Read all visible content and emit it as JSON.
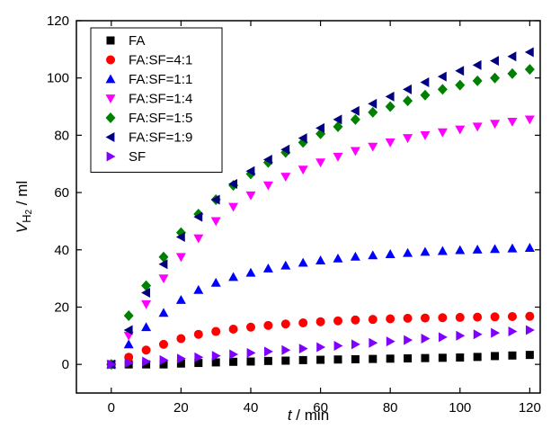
{
  "chart_data": {
    "type": "scatter",
    "xlabel": {
      "var": "t",
      "sep": " / ",
      "unit": "min"
    },
    "ylabel": {
      "var": "V",
      "sub": "H",
      "subsub": "2",
      "sep": " / ",
      "unit": "ml"
    },
    "xlim": [
      -10,
      123
    ],
    "ylim": [
      -10,
      120
    ],
    "xticks": [
      0,
      20,
      40,
      60,
      80,
      100,
      120
    ],
    "yticks": [
      0,
      20,
      40,
      60,
      80,
      100,
      120
    ],
    "legend_position": "top-left",
    "x": [
      0,
      5,
      10,
      15,
      20,
      25,
      30,
      35,
      40,
      45,
      50,
      55,
      60,
      65,
      70,
      75,
      80,
      85,
      90,
      95,
      100,
      105,
      110,
      115,
      120
    ],
    "series": [
      {
        "name": "FA",
        "marker": "square",
        "color": "#000000",
        "values": [
          0,
          0,
          0,
          0,
          0.3,
          0.5,
          0.7,
          0.9,
          1.0,
          1.2,
          1.3,
          1.5,
          1.6,
          1.7,
          1.8,
          1.9,
          2.0,
          2.1,
          2.2,
          2.3,
          2.4,
          2.6,
          2.9,
          3.1,
          3.3
        ]
      },
      {
        "name": "FA:SF=4:1",
        "marker": "circle",
        "color": "#ff0000",
        "values": [
          0,
          2.5,
          5,
          7,
          9,
          10.5,
          11.5,
          12.3,
          13,
          13.6,
          14.1,
          14.5,
          14.9,
          15.2,
          15.5,
          15.7,
          15.9,
          16.1,
          16.2,
          16.3,
          16.4,
          16.5,
          16.6,
          16.7,
          16.8
        ]
      },
      {
        "name": "FA:SF=1:1",
        "marker": "triangle-up",
        "color": "#0000ff",
        "values": [
          0,
          7,
          13,
          18,
          22.5,
          26,
          28.5,
          30.5,
          32,
          33.5,
          34.5,
          35.5,
          36.3,
          37,
          37.6,
          38.1,
          38.5,
          38.9,
          39.3,
          39.6,
          39.9,
          40.1,
          40.3,
          40.5,
          40.7
        ]
      },
      {
        "name": "FA:SF=1:4",
        "marker": "triangle-down",
        "color": "#ff00ff",
        "values": [
          0,
          10,
          21,
          30,
          37.5,
          44,
          50,
          55,
          59,
          62.5,
          65.5,
          68,
          70.5,
          72.5,
          74.5,
          76,
          77.5,
          79,
          80,
          81,
          82,
          83,
          84,
          84.7,
          85.5
        ]
      },
      {
        "name": "FA:SF=1:5",
        "marker": "diamond",
        "color": "#008000",
        "values": [
          0,
          17,
          27.5,
          37.5,
          46,
          52.5,
          57.5,
          62.5,
          66.5,
          70.5,
          74,
          77.5,
          80.5,
          83,
          85.5,
          88,
          90,
          92,
          94,
          96,
          97.5,
          99,
          100,
          101.5,
          103
        ]
      },
      {
        "name": "FA:SF=1:9",
        "marker": "triangle-left",
        "color": "#000080",
        "values": [
          0,
          12,
          25,
          35,
          44.5,
          51.5,
          57.5,
          63,
          67.5,
          71.5,
          75,
          79,
          82.5,
          85.5,
          88.5,
          91,
          93.5,
          96,
          98.5,
          100.5,
          102.5,
          104.5,
          106,
          107.5,
          109
        ]
      },
      {
        "name": "SF",
        "marker": "triangle-right",
        "color": "#8000ff",
        "values": [
          0,
          0.5,
          1.0,
          1.5,
          2.0,
          2.5,
          3.0,
          3.5,
          4.0,
          4.5,
          5.0,
          5.5,
          6.0,
          6.5,
          7.0,
          7.5,
          8.0,
          8.5,
          9.0,
          9.5,
          10.0,
          10.5,
          11.0,
          11.5,
          12.0
        ]
      }
    ]
  }
}
